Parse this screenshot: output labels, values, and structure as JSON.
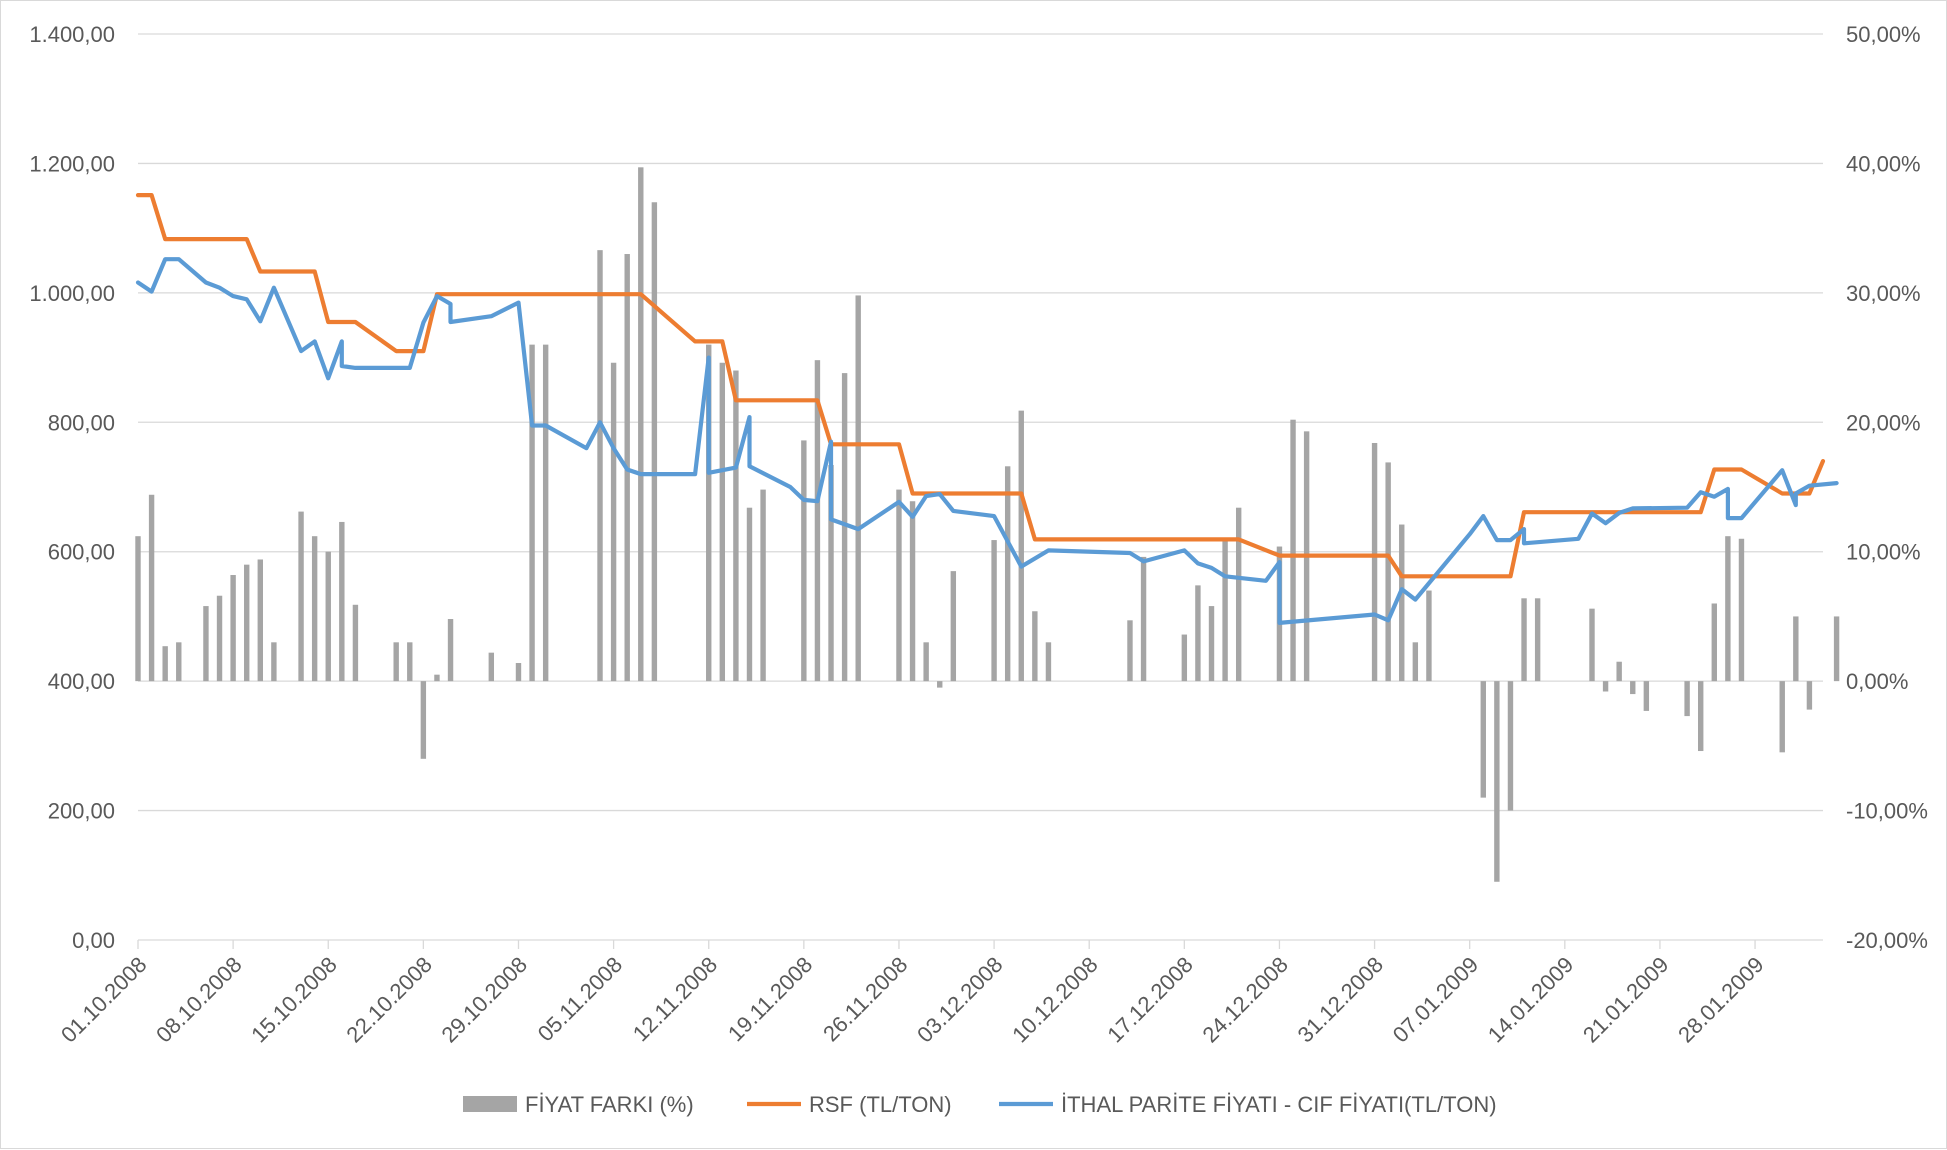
{
  "chart_data": {
    "type": "combo",
    "y_left": {
      "min": 0,
      "max": 1400,
      "step": 200,
      "tick_labels": [
        "0,00",
        "200,00",
        "400,00",
        "600,00",
        "800,00",
        "1.000,00",
        "1.200,00",
        "1.400,00"
      ]
    },
    "y_right": {
      "min": -20,
      "max": 50,
      "step": 10,
      "tick_labels": [
        "-20,00%",
        "-10,00%",
        "0,00%",
        "10,00%",
        "20,00%",
        "30,00%",
        "40,00%",
        "50,00%"
      ]
    },
    "x_start": "2008-10-01",
    "x_end": "2009-02-02",
    "x_tick_labels": [
      "01.10.2008",
      "08.10.2008",
      "15.10.2008",
      "22.10.2008",
      "29.10.2008",
      "05.11.2008",
      "12.11.2008",
      "19.11.2008",
      "26.11.2008",
      "03.12.2008",
      "10.12.2008",
      "17.12.2008",
      "24.12.2008",
      "31.12.2008",
      "07.01.2009",
      "14.01.2009",
      "21.01.2009",
      "28.01.2009"
    ],
    "grid": true,
    "legend_position": "bottom",
    "colors": {
      "bars": "#a5a5a5",
      "rsf": "#ed7d31",
      "ithal": "#5b9bd5",
      "grid": "#d9d9d9",
      "text": "#595959"
    },
    "series": [
      {
        "name": "FİYAT FARKI (%)",
        "type": "bar",
        "axis": "right",
        "points": [
          [
            "2008-10-01",
            11.2
          ],
          [
            "2008-10-02",
            14.4
          ],
          [
            "2008-10-03",
            2.7
          ],
          [
            "2008-10-04",
            3.0
          ],
          [
            "2008-10-06",
            5.8
          ],
          [
            "2008-10-07",
            6.6
          ],
          [
            "2008-10-08",
            8.2
          ],
          [
            "2008-10-09",
            9.0
          ],
          [
            "2008-10-10",
            9.4
          ],
          [
            "2008-10-11",
            3.0
          ],
          [
            "2008-10-13",
            13.1
          ],
          [
            "2008-10-14",
            11.2
          ],
          [
            "2008-10-15",
            10.0
          ],
          [
            "2008-10-16",
            12.3
          ],
          [
            "2008-10-17",
            5.9
          ],
          [
            "2008-10-20",
            3.0
          ],
          [
            "2008-10-21",
            3.0
          ],
          [
            "2008-10-22",
            -6.0
          ],
          [
            "2008-10-23",
            0.5
          ],
          [
            "2008-10-24",
            4.8
          ],
          [
            "2008-10-27",
            2.2
          ],
          [
            "2008-10-29",
            1.4
          ],
          [
            "2008-10-30",
            26.0
          ],
          [
            "2008-10-31",
            26.0
          ],
          [
            "2008-11-04",
            33.3
          ],
          [
            "2008-11-05",
            24.6
          ],
          [
            "2008-11-06",
            33.0
          ],
          [
            "2008-11-07",
            39.7
          ],
          [
            "2008-11-08",
            37.0
          ],
          [
            "2008-11-12",
            26.0
          ],
          [
            "2008-11-13",
            24.6
          ],
          [
            "2008-11-14",
            24.0
          ],
          [
            "2008-11-15",
            13.4
          ],
          [
            "2008-11-16",
            14.8
          ],
          [
            "2008-11-19",
            18.6
          ],
          [
            "2008-11-20",
            24.8
          ],
          [
            "2008-11-21",
            16.7
          ],
          [
            "2008-11-22",
            23.8
          ],
          [
            "2008-11-23",
            29.8
          ],
          [
            "2008-11-26",
            14.8
          ],
          [
            "2008-11-27",
            13.9
          ],
          [
            "2008-11-28",
            3.0
          ],
          [
            "2008-11-29",
            -0.5
          ],
          [
            "2008-11-30",
            8.5
          ],
          [
            "2008-12-03",
            10.9
          ],
          [
            "2008-12-04",
            16.6
          ],
          [
            "2008-12-05",
            20.9
          ],
          [
            "2008-12-06",
            5.4
          ],
          [
            "2008-12-07",
            3.0
          ],
          [
            "2008-12-13",
            4.7
          ],
          [
            "2008-12-14",
            9.6
          ],
          [
            "2008-12-17",
            3.6
          ],
          [
            "2008-12-18",
            7.4
          ],
          [
            "2008-12-19",
            5.8
          ],
          [
            "2008-12-20",
            10.9
          ],
          [
            "2008-12-21",
            13.4
          ],
          [
            "2008-12-24",
            10.4
          ],
          [
            "2008-12-25",
            20.2
          ],
          [
            "2008-12-26",
            19.3
          ],
          [
            "2008-12-31",
            18.4
          ],
          [
            "2009-01-01",
            16.9
          ],
          [
            "2009-01-02",
            12.1
          ],
          [
            "2009-01-03",
            3.0
          ],
          [
            "2009-01-04",
            7.0
          ],
          [
            "2009-01-08",
            -9.0
          ],
          [
            "2009-01-09",
            -15.5
          ],
          [
            "2009-01-10",
            -10.0
          ],
          [
            "2009-01-11",
            6.4
          ],
          [
            "2009-01-12",
            6.4
          ],
          [
            "2009-01-16",
            5.6
          ],
          [
            "2009-01-17",
            -0.8
          ],
          [
            "2009-01-18",
            1.5
          ],
          [
            "2009-01-19",
            -1.0
          ],
          [
            "2009-01-20",
            -2.3
          ],
          [
            "2009-01-23",
            -2.7
          ],
          [
            "2009-01-24",
            -5.4
          ],
          [
            "2009-01-25",
            6.0
          ],
          [
            "2009-01-26",
            11.2
          ],
          [
            "2009-01-27",
            11.0
          ],
          [
            "2009-01-30",
            -5.5
          ],
          [
            "2009-01-31",
            5.0
          ],
          [
            "2009-02-01",
            -2.2
          ],
          [
            "2009-02-03",
            5.0
          ]
        ]
      },
      {
        "name": "RSF (TL/TON)",
        "type": "line",
        "axis": "left",
        "points": [
          [
            "2008-10-01",
            1151
          ],
          [
            "2008-10-02",
            1151
          ],
          [
            "2008-10-03",
            1083
          ],
          [
            "2008-10-09",
            1083
          ],
          [
            "2008-10-10",
            1033
          ],
          [
            "2008-10-14",
            1033
          ],
          [
            "2008-10-15",
            955
          ],
          [
            "2008-10-17",
            955
          ],
          [
            "2008-10-20",
            910
          ],
          [
            "2008-10-22",
            910
          ],
          [
            "2008-10-23",
            998
          ],
          [
            "2008-11-07",
            998
          ],
          [
            "2008-11-11",
            925
          ],
          [
            "2008-11-12",
            925
          ],
          [
            "2008-11-13",
            925
          ],
          [
            "2008-11-14",
            834
          ],
          [
            "2008-11-19",
            834
          ],
          [
            "2008-11-20",
            834
          ],
          [
            "2008-11-21",
            766
          ],
          [
            "2008-11-26",
            766
          ],
          [
            "2008-11-27",
            690
          ],
          [
            "2008-12-05",
            690
          ],
          [
            "2008-12-06",
            619
          ],
          [
            "2008-12-20",
            619
          ],
          [
            "2008-12-21",
            619
          ],
          [
            "2008-12-24",
            594
          ],
          [
            "2008-12-31",
            594
          ],
          [
            "2009-01-01",
            594
          ],
          [
            "2009-01-02",
            562
          ],
          [
            "2009-01-10",
            562
          ],
          [
            "2009-01-11",
            661
          ],
          [
            "2009-01-24",
            661
          ],
          [
            "2009-01-25",
            727
          ],
          [
            "2009-01-27",
            727
          ],
          [
            "2009-01-30",
            690
          ],
          [
            "2009-02-01",
            690
          ],
          [
            "2009-02-02",
            740
          ]
        ]
      },
      {
        "name": "İTHAL PARİTE FİYATI - CIF FİYATI(TL/TON)",
        "type": "line",
        "axis": "left",
        "points": [
          [
            "2008-10-01",
            1016
          ],
          [
            "2008-10-02",
            1002
          ],
          [
            "2008-10-03",
            1052
          ],
          [
            "2008-10-04",
            1052
          ],
          [
            "2008-10-06",
            1016
          ],
          [
            "2008-10-07",
            1008
          ],
          [
            "2008-10-08",
            995
          ],
          [
            "2008-10-09",
            990
          ],
          [
            "2008-10-10",
            956
          ],
          [
            "2008-10-11",
            1008
          ],
          [
            "2008-10-13",
            910
          ],
          [
            "2008-10-14",
            925
          ],
          [
            "2008-10-15",
            868
          ],
          [
            "2008-10-16",
            925
          ],
          [
            "2008-10-16",
            887
          ],
          [
            "2008-10-17",
            884
          ],
          [
            "2008-10-21",
            884
          ],
          [
            "2008-10-22",
            954
          ],
          [
            "2008-10-23",
            995
          ],
          [
            "2008-10-24",
            983
          ],
          [
            "2008-10-24",
            955
          ],
          [
            "2008-10-27",
            964
          ],
          [
            "2008-10-29",
            985
          ],
          [
            "2008-10-30",
            795
          ],
          [
            "2008-10-31",
            795
          ],
          [
            "2008-11-03",
            760
          ],
          [
            "2008-11-04",
            800
          ],
          [
            "2008-11-05",
            760
          ],
          [
            "2008-11-06",
            727
          ],
          [
            "2008-11-07",
            720
          ],
          [
            "2008-11-11",
            720
          ],
          [
            "2008-11-12",
            900
          ],
          [
            "2008-11-12",
            722
          ],
          [
            "2008-11-14",
            730
          ],
          [
            "2008-11-15",
            808
          ],
          [
            "2008-11-15",
            732
          ],
          [
            "2008-11-18",
            700
          ],
          [
            "2008-11-19",
            680
          ],
          [
            "2008-11-20",
            678
          ],
          [
            "2008-11-21",
            770
          ],
          [
            "2008-11-21",
            650
          ],
          [
            "2008-11-23",
            635
          ],
          [
            "2008-11-26",
            677
          ],
          [
            "2008-11-27",
            654
          ],
          [
            "2008-11-28",
            686
          ],
          [
            "2008-11-29",
            689
          ],
          [
            "2008-11-30",
            663
          ],
          [
            "2008-12-03",
            655
          ],
          [
            "2008-12-05",
            577
          ],
          [
            "2008-12-07",
            602
          ],
          [
            "2008-12-13",
            598
          ],
          [
            "2008-12-14",
            585
          ],
          [
            "2008-12-17",
            602
          ],
          [
            "2008-12-18",
            582
          ],
          [
            "2008-12-19",
            575
          ],
          [
            "2008-12-20",
            562
          ],
          [
            "2008-12-23",
            555
          ],
          [
            "2008-12-24",
            584
          ],
          [
            "2008-12-24",
            490
          ],
          [
            "2008-12-31",
            503
          ],
          [
            "2009-01-01",
            494
          ],
          [
            "2009-01-02",
            542
          ],
          [
            "2009-01-03",
            526
          ],
          [
            "2009-01-07",
            627
          ],
          [
            "2009-01-08",
            655
          ],
          [
            "2009-01-09",
            618
          ],
          [
            "2009-01-10",
            618
          ],
          [
            "2009-01-11",
            635
          ],
          [
            "2009-01-11",
            613
          ],
          [
            "2009-01-15",
            620
          ],
          [
            "2009-01-16",
            659
          ],
          [
            "2009-01-17",
            644
          ],
          [
            "2009-01-18",
            660
          ],
          [
            "2009-01-19",
            667
          ],
          [
            "2009-01-23",
            668
          ],
          [
            "2009-01-24",
            692
          ],
          [
            "2009-01-25",
            685
          ],
          [
            "2009-01-26",
            697
          ],
          [
            "2009-01-26",
            652
          ],
          [
            "2009-01-27",
            652
          ],
          [
            "2009-01-30",
            726
          ],
          [
            "2009-01-31",
            672
          ],
          [
            "2009-01-31",
            690
          ],
          [
            "2009-02-01",
            702
          ],
          [
            "2009-02-03",
            706
          ]
        ]
      }
    ]
  }
}
